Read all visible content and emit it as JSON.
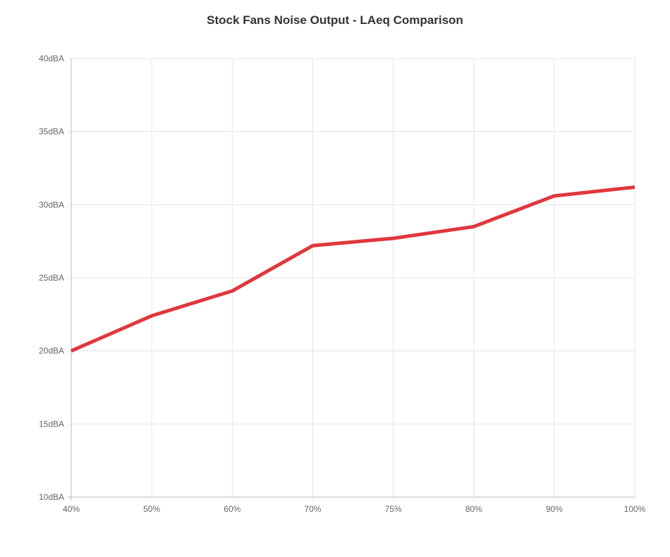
{
  "chart_data": {
    "type": "line",
    "title": "Stock Fans Noise Output - LAeq Comparison",
    "categories": [
      "40%",
      "50%",
      "60%",
      "70%",
      "75%",
      "80%",
      "90%",
      "100%"
    ],
    "series": [
      {
        "values": [
          20.0,
          22.4,
          24.1,
          27.2,
          27.7,
          28.5,
          30.6,
          31.2
        ],
        "color": "#e0373d"
      }
    ],
    "ylim": [
      10,
      40
    ],
    "yticks": [
      10,
      15,
      20,
      25,
      30,
      35,
      40
    ],
    "ytick_suffix": "dBA",
    "xlabel": "",
    "ylabel": "",
    "grid": true,
    "legend": "none"
  }
}
